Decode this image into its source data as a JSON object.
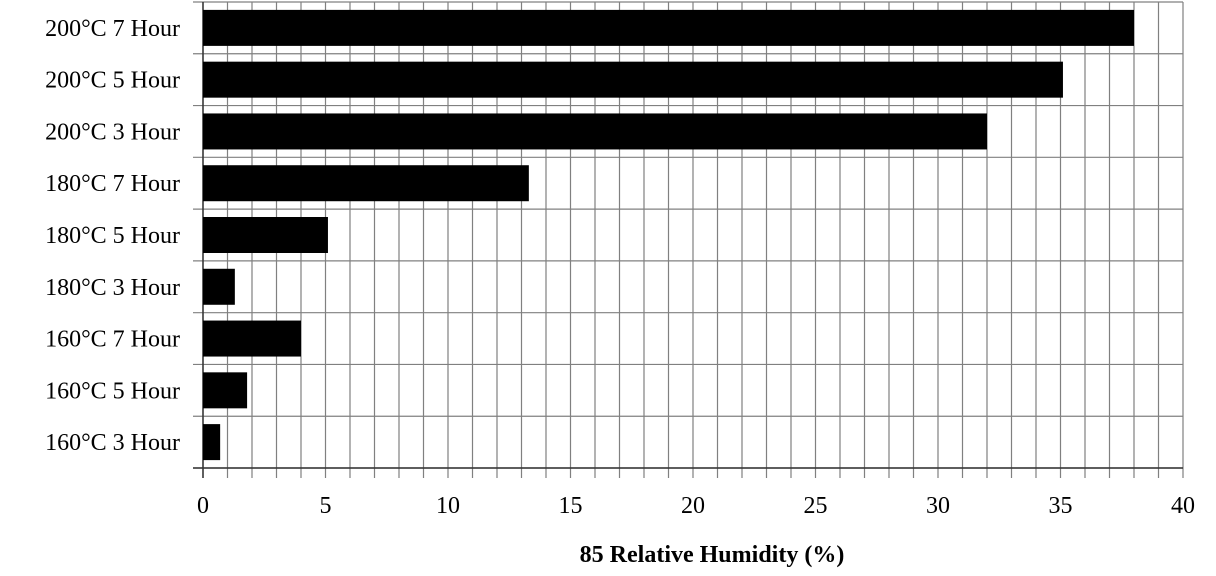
{
  "chart_data": {
    "type": "bar",
    "orientation": "horizontal",
    "categories": [
      "200°C 7 Hour",
      "200°C 5 Hour",
      "200°C 3 Hour",
      "180°C 7 Hour",
      "180°C 5 Hour",
      "180°C 3 Hour",
      "160°C 7 Hour",
      "160°C 5 Hour",
      "160°C 3 Hour"
    ],
    "values": [
      38,
      35.1,
      32,
      13.3,
      5.1,
      1.3,
      4.0,
      1.8,
      0.7
    ],
    "title": "",
    "xlabel": "85 Relative Humidity (%)",
    "ylabel": "",
    "xlim": [
      0,
      40
    ],
    "xticks": [
      "0",
      "5",
      "10",
      "15",
      "20",
      "25",
      "30",
      "35",
      "40"
    ],
    "minor_grid_step": 1,
    "grid": true,
    "bar_color": "#000000",
    "grid_color": "#808080"
  }
}
